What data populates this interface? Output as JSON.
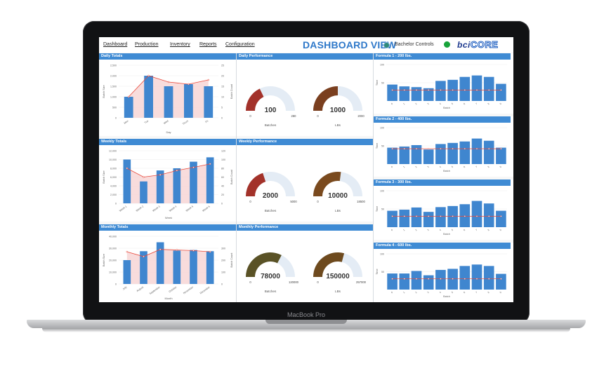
{
  "device": {
    "label": "MacBook Pro"
  },
  "nav": {
    "items": [
      "Dashboard",
      "Production",
      "Inventory",
      "Reports",
      "Configuration"
    ]
  },
  "header": {
    "title": "DASHBOARD VIEW",
    "company": "Bachelor Controls",
    "status_color": "#18a33a",
    "logo_part1": "bci",
    "logo_part2": "CORE"
  },
  "colors": {
    "panel_header": "#3f8bd4",
    "bar": "#3f86cf",
    "line": "#e8493b",
    "area": "#f6d3d3"
  },
  "totals": [
    {
      "title": "Daily Totals",
      "xlabel": "Day",
      "ylabel": "Batch Size",
      "y2label": "Batch Count",
      "categories": [
        "Mon",
        "Tue",
        "Wed",
        "Thurs",
        "Fri"
      ],
      "bar_values": [
        1000,
        2000,
        1500,
        1600,
        1500
      ],
      "ylim": [
        0,
        2500
      ],
      "yticks": [
        "0",
        "500",
        "1,000",
        "1,500",
        "2,000",
        "2,500"
      ],
      "line_values": [
        10,
        20,
        17,
        16,
        18
      ],
      "y2lim": [
        0,
        25
      ],
      "y2ticks": [
        "0",
        "5",
        "10",
        "15",
        "20",
        "25"
      ]
    },
    {
      "title": "Weekly Totals",
      "xlabel": "Week",
      "ylabel": "Batch Size",
      "y2label": "Batch Count",
      "categories": [
        "Week 1",
        "Week 2",
        "Week 3",
        "Week 4",
        "Week 5",
        "Week 6"
      ],
      "bar_values": [
        10000,
        5000,
        7500,
        8000,
        9500,
        10500
      ],
      "ylim": [
        0,
        12000
      ],
      "yticks": [
        "0",
        "2,000",
        "4,000",
        "6,000",
        "8,000",
        "10,000",
        "12,000"
      ],
      "line_values": [
        80,
        60,
        65,
        75,
        82,
        90
      ],
      "y2lim": [
        0,
        120
      ],
      "y2ticks": [
        "0",
        "20",
        "40",
        "60",
        "80",
        "100",
        "120"
      ]
    },
    {
      "title": "Monthly Totals",
      "xlabel": "Month",
      "ylabel": "Batch Size",
      "y2label": "Batch Count",
      "categories": [
        "July",
        "August",
        "September",
        "October",
        "November",
        "December"
      ],
      "bar_values": [
        20000,
        27500,
        35000,
        28000,
        28500,
        27500
      ],
      "ylim": [
        0,
        40000
      ],
      "yticks": [
        "0",
        "10,000",
        "20,000",
        "30,000",
        "40,000"
      ],
      "line_values": [
        270,
        230,
        290,
        285,
        280,
        270
      ],
      "y2lim": [
        0,
        400
      ],
      "y2ticks": [
        "0",
        "100",
        "200",
        "300"
      ]
    }
  ],
  "performance": [
    {
      "title": "Daily Performance",
      "gauges": [
        {
          "label": "Batches",
          "value": 100,
          "value_text": "100",
          "min_text": "0",
          "max_text": "280",
          "max": 280,
          "color": "#a3322a"
        },
        {
          "label": "LBs",
          "value": 1000,
          "value_text": "1000",
          "min_text": "0",
          "max_text": "2000",
          "max": 2000,
          "color": "#7a3f1f"
        }
      ]
    },
    {
      "title": "Weekly Performance",
      "gauges": [
        {
          "label": "Batches",
          "value": 2000,
          "value_text": "2000",
          "min_text": "0",
          "max_text": "5000",
          "max": 5000,
          "color": "#a3322a"
        },
        {
          "label": "LBs",
          "value": 10000,
          "value_text": "10000",
          "min_text": "0",
          "max_text": "18500",
          "max": 18500,
          "color": "#7a4a1e"
        }
      ]
    },
    {
      "title": "Monthly Performance",
      "gauges": [
        {
          "label": "Batches",
          "value": 78000,
          "value_text": "78000",
          "min_text": "0",
          "max_text": "120000",
          "max": 120000,
          "color": "#5a5226"
        },
        {
          "label": "LBs",
          "value": 150000,
          "value_text": "150000",
          "min_text": "0",
          "max_text": "257000",
          "max": 257000,
          "color": "#6e4a1e"
        }
      ]
    }
  ],
  "formulas": [
    {
      "title": "Formula 1 - 200 lbs.",
      "ylabel": "Time",
      "xlabel": "Batch",
      "ytick_top": "100",
      "ytick_mid": "50",
      "ylim": [
        0,
        100
      ],
      "categories": [
        "0",
        "1",
        "2",
        "3",
        "4",
        "5",
        "6",
        "7",
        "8",
        "9"
      ],
      "bar_values": [
        45,
        40,
        38,
        35,
        55,
        58,
        66,
        70,
        66,
        47
      ],
      "line_value": 30
    },
    {
      "title": "Formula 2 - 400 lbs.",
      "ylabel": "Time",
      "xlabel": "Batch",
      "ytick_top": "100",
      "ytick_mid": "50",
      "ylim": [
        0,
        100
      ],
      "categories": [
        "0",
        "1",
        "2",
        "3",
        "4",
        "5",
        "6",
        "7",
        "8",
        "9"
      ],
      "bar_values": [
        45,
        48,
        52,
        40,
        55,
        58,
        62,
        70,
        64,
        45
      ],
      "line_value": 42
    },
    {
      "title": "Formula 3 - 300 lbs.",
      "ylabel": "Time",
      "xlabel": "Batch",
      "ytick_top": "100",
      "ytick_mid": "50",
      "ylim": [
        0,
        100
      ],
      "categories": [
        "0",
        "1",
        "2",
        "3",
        "4",
        "5",
        "6",
        "7",
        "8",
        "9"
      ],
      "bar_values": [
        45,
        48,
        54,
        42,
        55,
        58,
        63,
        72,
        65,
        45
      ],
      "line_value": 30
    },
    {
      "title": "Formula 4 - 600 lbs.",
      "ylabel": "Time",
      "xlabel": "Batch",
      "ytick_top": "100",
      "ytick_mid": "50",
      "ylim": [
        0,
        100
      ],
      "categories": [
        "0",
        "1",
        "2",
        "3",
        "4",
        "5",
        "6",
        "7",
        "8",
        "9"
      ],
      "bar_values": [
        45,
        45,
        52,
        40,
        55,
        58,
        66,
        70,
        66,
        44
      ],
      "line_value": 30
    }
  ]
}
